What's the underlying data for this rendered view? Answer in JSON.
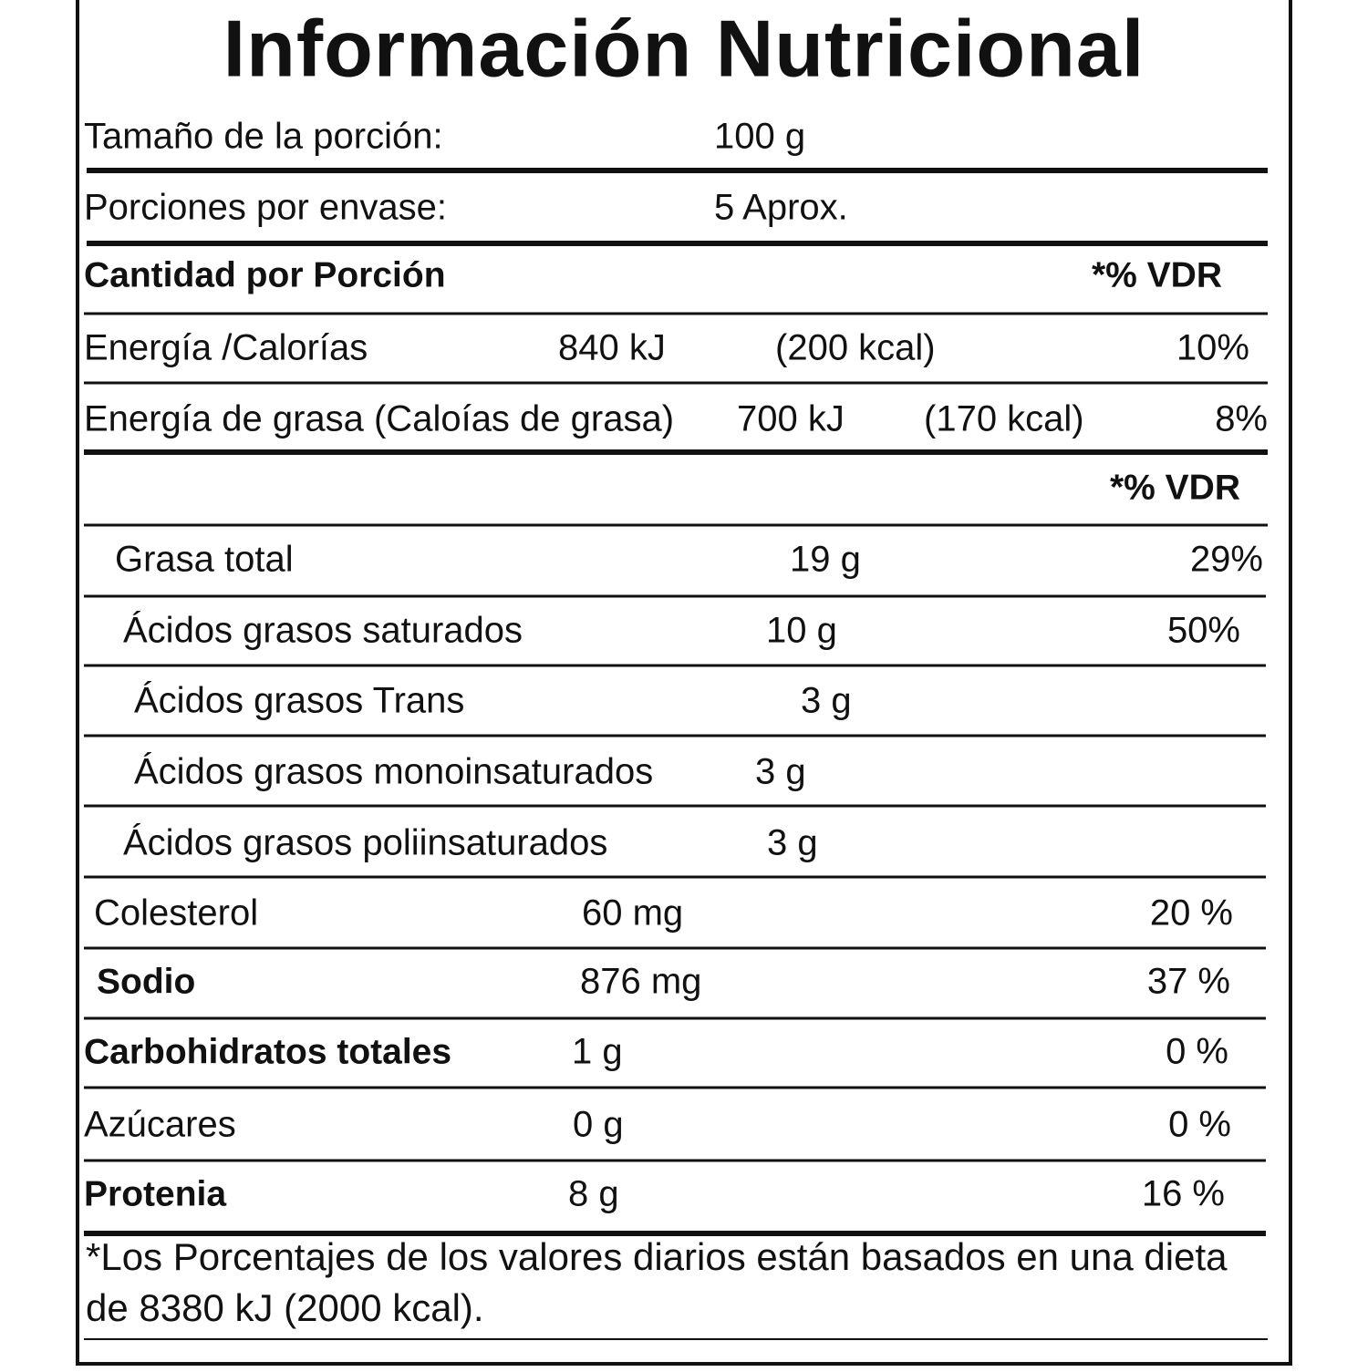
{
  "title": "Información Nutricional",
  "serving": [
    [
      "Tamaño de la porción:",
      "100 g"
    ],
    [
      "Porciones por envase:",
      "5 Aprox."
    ]
  ],
  "header": [
    "Cantidad por Porción",
    "*% VDR"
  ],
  "energy": [
    [
      "Energía /Calorías",
      "840 kJ",
      "(200 kcal)",
      "10%"
    ],
    [
      "Energía de grasa (Caloías de grasa)",
      "700 kJ",
      "(170 kcal)",
      "8%"
    ]
  ],
  "vdr_header": "*% VDR",
  "nutrients": [
    [
      "Grasa total",
      "19 g",
      "29%"
    ],
    [
      "Ácidos grasos saturados",
      "10 g",
      "50%"
    ],
    [
      "Ácidos grasos Trans",
      "3 g"
    ],
    [
      "Ácidos grasos monoinsaturados",
      "3 g"
    ],
    [
      "Ácidos grasos poliinsaturados",
      "3 g"
    ],
    [
      "Colesterol",
      "60 mg",
      "20 %"
    ],
    [
      "Sodio",
      "876 mg",
      "37 %"
    ],
    [
      "Carbohidratos totales",
      "1 g",
      "0 %"
    ],
    [
      "Azúcares",
      "0 g",
      "0 %"
    ],
    [
      "Protenia",
      "8 g",
      "16 %"
    ]
  ],
  "footnote": [
    "*Los Porcentajes de los valores diarios están basados en una dieta",
    "de 8380 kJ (2000 kcal)."
  ]
}
